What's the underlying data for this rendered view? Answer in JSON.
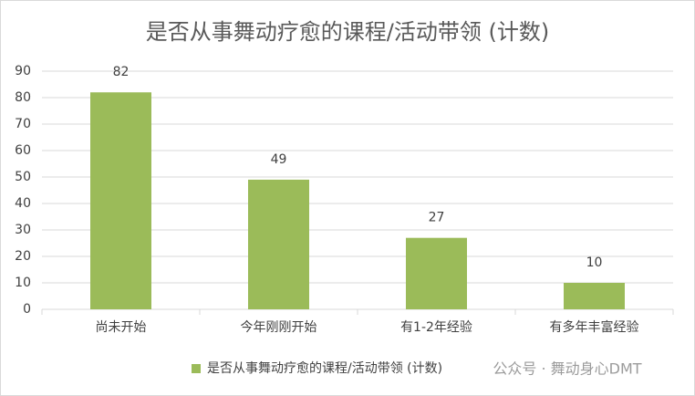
{
  "chart_data": {
    "type": "bar",
    "title": "是否从事舞动疗愈的课程/活动带领 (计数)",
    "categories": [
      "尚未开始",
      "今年刚刚开始",
      "有1-2年经验",
      "有多年丰富经验"
    ],
    "series": [
      {
        "name": "是否从事舞动疗愈的课程/活动带领 (计数)",
        "color": "#9bbb59",
        "values": [
          82,
          49,
          27,
          10
        ]
      }
    ],
    "ylim": [
      0,
      90
    ],
    "yticks": [
      0,
      10,
      20,
      30,
      40,
      50,
      60,
      70,
      80,
      90
    ],
    "grid": true,
    "data_labels": true,
    "legend": "bottom"
  },
  "watermark": "公众号 · 舞动身心DMT"
}
